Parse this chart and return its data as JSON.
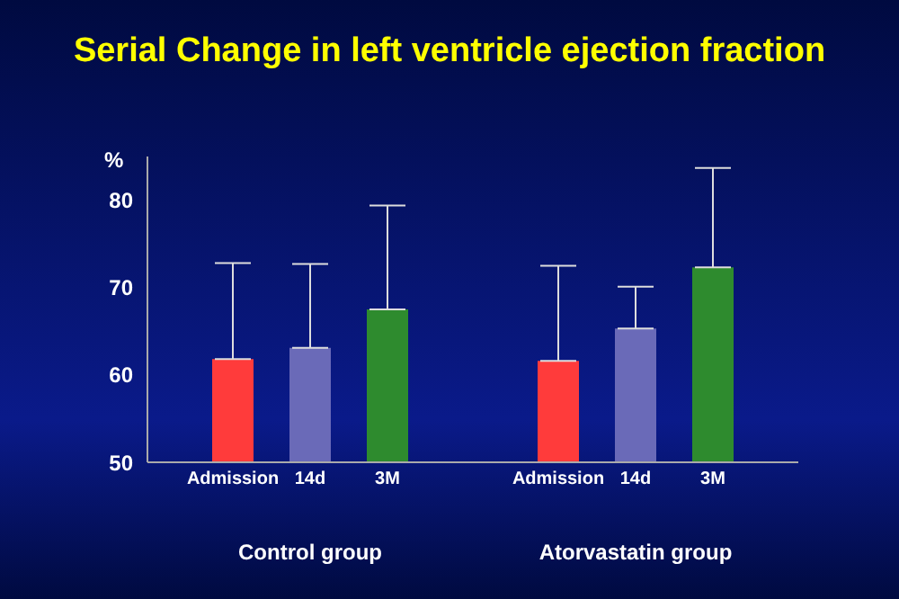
{
  "chart_data": {
    "type": "bar",
    "title": "Serial Change in left ventricle ejection fraction",
    "ylabel": "%",
    "categories": [
      "Control group",
      "Atorvastatin group"
    ],
    "series": [
      {
        "name": "Admission",
        "color": "#ff3b3b",
        "values": [
          61.8,
          61.6
        ],
        "errors": [
          [
            61.8,
            72.8
          ],
          [
            61.6,
            72.5
          ]
        ]
      },
      {
        "name": "14d",
        "color": "#6a6ab8",
        "values": [
          63.1,
          65.3
        ],
        "errors": [
          [
            63.1,
            72.7
          ],
          [
            65.3,
            70.1
          ]
        ]
      },
      {
        "name": "3M",
        "color": "#2e8b2e",
        "values": [
          67.5,
          72.3
        ],
        "errors": [
          [
            67.5,
            79.4
          ],
          [
            72.3,
            83.7
          ]
        ]
      }
    ],
    "ylim": [
      50,
      85
    ],
    "yticks": [
      50,
      60,
      70,
      80
    ],
    "grid": false,
    "legend": false
  }
}
